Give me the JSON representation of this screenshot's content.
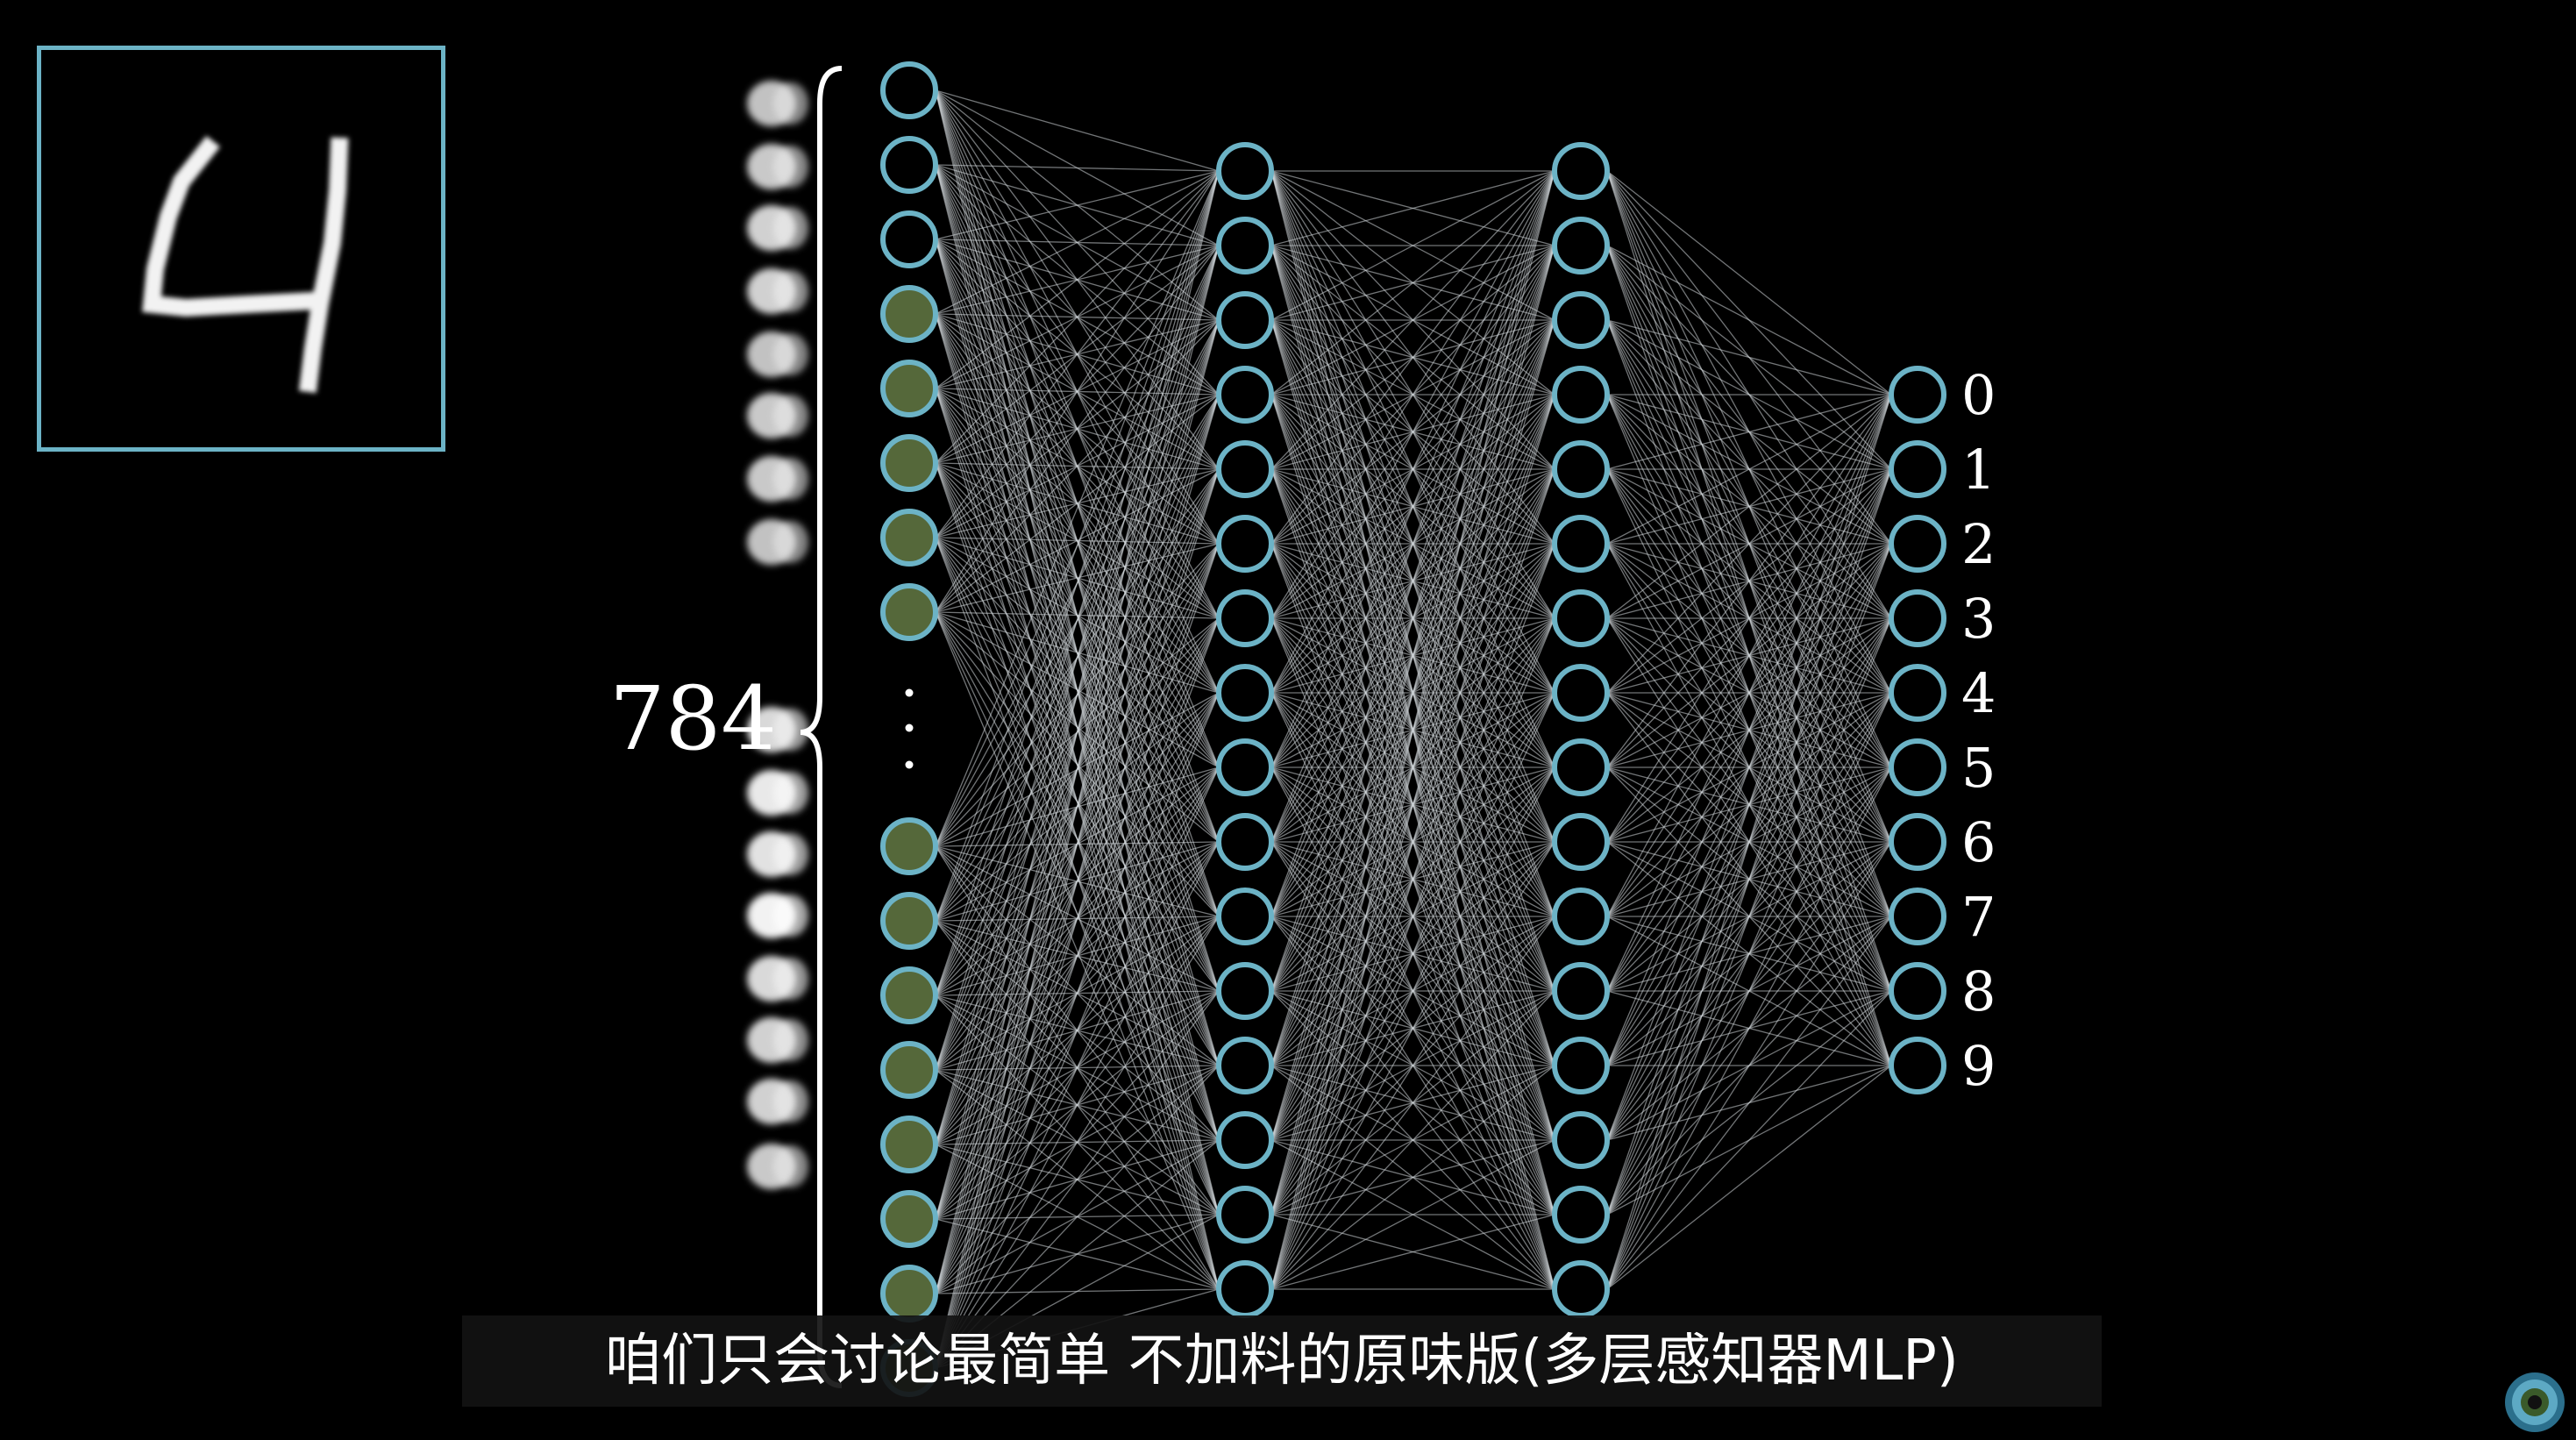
{
  "input_count_label": "784",
  "input_digit": "4",
  "output_labels": [
    "0",
    "1",
    "2",
    "3",
    "4",
    "5",
    "6",
    "7",
    "8",
    "9"
  ],
  "subtitle": "咱们只会讨论最简单 不加料的原味版(多层感知器MLP)",
  "colors": {
    "background": "#000000",
    "node_stroke": "#6cb3c6",
    "edge": "#cfd5d8",
    "active_node_fill": "#55683a",
    "box_border": "#6cb3c6",
    "label_text": "#ffffff"
  },
  "network": {
    "layers": [
      {
        "role": "input",
        "visible_nodes": 16,
        "activations": [
          0.0,
          0.0,
          0.0,
          0.5,
          0.6,
          0.6,
          0.5,
          0.6,
          0.5,
          0.6,
          0.5,
          0.6,
          0.6,
          0.5,
          0.5,
          0.6
        ]
      },
      {
        "role": "hidden",
        "visible_nodes": 16
      },
      {
        "role": "hidden",
        "visible_nodes": 16
      },
      {
        "role": "output",
        "visible_nodes": 10
      }
    ]
  },
  "pixel_column_brightness": [
    0.7,
    0.75,
    0.8,
    0.8,
    0.7,
    0.75,
    0.75,
    0.7,
    0.85,
    0.95,
    0.9,
    1.0,
    0.85,
    0.8,
    0.8,
    0.75
  ],
  "icons": [
    "vertical-ellipsis-icon",
    "curly-brace-icon",
    "corner-logo-icon"
  ]
}
